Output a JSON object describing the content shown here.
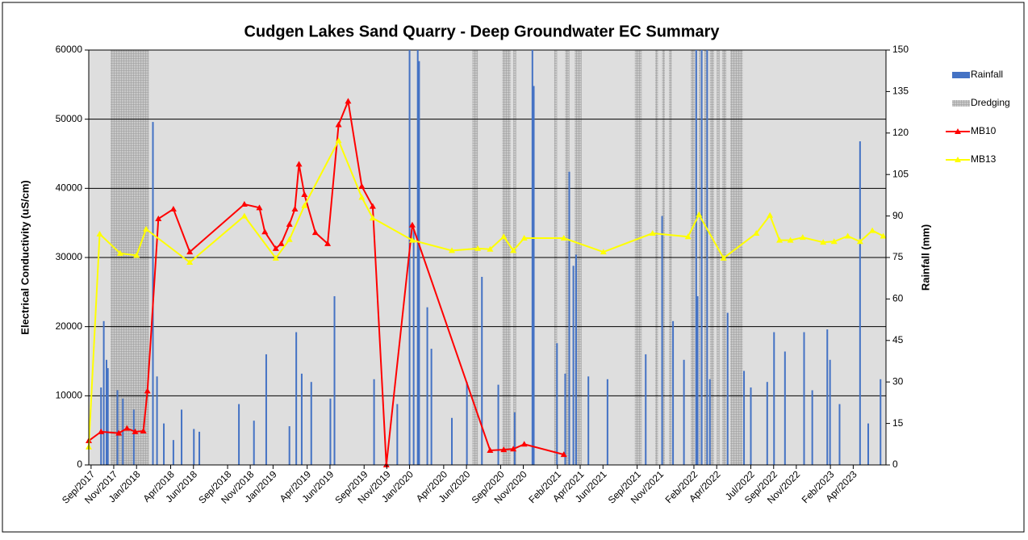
{
  "chart_data": {
    "type": "combo",
    "title": "Cudgen Lakes Sand Quarry - Deep Groundwater EC Summary",
    "y_label": "Electrical Conductivity (uS/cm)",
    "y2_label": "Rainfall (mm)",
    "xlim": [
      2017.65,
      2023.49
    ],
    "xticks": [
      {
        "value": 2017.667,
        "label": "Sep/2017"
      },
      {
        "value": 2017.833,
        "label": "Nov/2017"
      },
      {
        "value": 2018.0,
        "label": "Jan/2018"
      },
      {
        "value": 2018.25,
        "label": "Apr/2018"
      },
      {
        "value": 2018.417,
        "label": "Jun/2018"
      },
      {
        "value": 2018.667,
        "label": "Sep/2018"
      },
      {
        "value": 2018.833,
        "label": "Nov/2018"
      },
      {
        "value": 2019.0,
        "label": "Jan/2019"
      },
      {
        "value": 2019.25,
        "label": "Apr/2019"
      },
      {
        "value": 2019.417,
        "label": "Jun/2019"
      },
      {
        "value": 2019.667,
        "label": "Sep/2019"
      },
      {
        "value": 2019.833,
        "label": "Nov/2019"
      },
      {
        "value": 2020.0,
        "label": "Jan/2020"
      },
      {
        "value": 2020.25,
        "label": "Apr/2020"
      },
      {
        "value": 2020.417,
        "label": "Jun/2020"
      },
      {
        "value": 2020.667,
        "label": "Sep/2020"
      },
      {
        "value": 2020.833,
        "label": "Nov/2020"
      },
      {
        "value": 2021.083,
        "label": "Feb/2021"
      },
      {
        "value": 2021.25,
        "label": "Apr/2021"
      },
      {
        "value": 2021.417,
        "label": "Jun/2021"
      },
      {
        "value": 2021.667,
        "label": "Sep/2021"
      },
      {
        "value": 2021.833,
        "label": "Nov/2021"
      },
      {
        "value": 2022.083,
        "label": "Feb/2022"
      },
      {
        "value": 2022.25,
        "label": "Apr/2022"
      },
      {
        "value": 2022.5,
        "label": "Jul/2022"
      },
      {
        "value": 2022.667,
        "label": "Sep/2022"
      },
      {
        "value": 2022.833,
        "label": "Nov/2022"
      },
      {
        "value": 2023.083,
        "label": "Feb/2023"
      },
      {
        "value": 2023.25,
        "label": "Apr/2023"
      }
    ],
    "ylim": [
      0,
      60000
    ],
    "yticks": [
      0,
      10000,
      20000,
      30000,
      40000,
      50000,
      60000
    ],
    "y2lim": [
      0,
      150
    ],
    "y2ticks": [
      0,
      15,
      30,
      45,
      60,
      75,
      90,
      105,
      120,
      135,
      150
    ],
    "grid": true,
    "legend": "right",
    "series": [
      {
        "name": "Rainfall",
        "type": "bar",
        "axis": "y2",
        "color": "#4472c4",
        "x": [
          2017.74,
          2017.76,
          2017.78,
          2017.79,
          2017.86,
          2017.9,
          2017.98,
          2018.12,
          2018.15,
          2018.2,
          2018.27,
          2018.33,
          2018.42,
          2018.46,
          2018.75,
          2018.86,
          2018.95,
          2019.12,
          2019.17,
          2019.21,
          2019.28,
          2019.42,
          2019.45,
          2019.74,
          2019.91,
          2020.0,
          2020.03,
          2020.06,
          2020.07,
          2020.13,
          2020.16,
          2020.31,
          2020.42,
          2020.53,
          2020.65,
          2020.77,
          2020.9,
          2020.91,
          2021.08,
          2021.14,
          2021.17,
          2021.2,
          2021.22,
          2021.31,
          2021.45,
          2021.73,
          2021.85,
          2021.93,
          2022.01,
          2022.1,
          2022.11,
          2022.14,
          2022.18,
          2022.2,
          2022.33,
          2022.45,
          2022.5,
          2022.62,
          2022.67,
          2022.75,
          2022.89,
          2022.95,
          2023.06,
          2023.08,
          2023.15,
          2023.3,
          2023.36,
          2023.45
        ],
        "values": [
          28,
          52,
          38,
          35,
          27,
          24,
          20,
          124,
          32,
          15,
          9,
          20,
          13,
          12,
          22,
          16,
          40,
          14,
          48,
          33,
          30,
          24,
          61,
          31,
          22,
          150,
          85,
          150,
          146,
          57,
          42,
          17,
          30,
          68,
          29,
          19,
          150,
          137,
          44,
          33,
          106,
          72,
          76,
          32,
          31,
          40,
          90,
          52,
          38,
          150,
          61,
          150,
          150,
          31,
          55,
          34,
          28,
          30,
          48,
          41,
          48,
          27,
          49,
          38,
          22,
          117,
          15,
          31
        ]
      },
      {
        "name": "Dredging",
        "type": "span",
        "color": "#9a9a9a",
        "periods": [
          [
            2017.81,
            2018.09
          ],
          [
            2020.46,
            2020.5
          ],
          [
            2020.68,
            2020.74
          ],
          [
            2020.76,
            2020.78
          ],
          [
            2021.06,
            2021.08
          ],
          [
            2021.14,
            2021.17
          ],
          [
            2021.21,
            2021.26
          ],
          [
            2021.65,
            2021.7
          ],
          [
            2021.8,
            2021.82
          ],
          [
            2021.85,
            2021.87
          ],
          [
            2021.9,
            2021.92
          ],
          [
            2022.06,
            2022.09
          ],
          [
            2022.12,
            2022.13
          ],
          [
            2022.16,
            2022.18
          ],
          [
            2022.2,
            2022.23
          ],
          [
            2022.25,
            2022.27
          ],
          [
            2022.29,
            2022.32
          ],
          [
            2022.35,
            2022.44
          ]
        ]
      },
      {
        "name": "MB10",
        "type": "line",
        "color": "#ff0000",
        "x": [
          2017.65,
          2017.74,
          2017.87,
          2017.93,
          2017.99,
          2018.05,
          2018.08,
          2018.16,
          2018.27,
          2018.39,
          2018.79,
          2018.9,
          2018.94,
          2019.02,
          2019.06,
          2019.12,
          2019.16,
          2019.19,
          2019.23,
          2019.31,
          2019.4,
          2019.48,
          2019.55,
          2019.65,
          2019.73,
          2019.83,
          2020.02,
          2020.59,
          2020.69,
          2020.76,
          2020.84,
          2021.13
        ],
        "values": [
          3500,
          4800,
          4600,
          5300,
          4800,
          4900,
          10700,
          35600,
          37000,
          30800,
          37700,
          37200,
          33700,
          31300,
          32000,
          34800,
          37000,
          43500,
          39100,
          33600,
          32000,
          49200,
          52600,
          40300,
          37400,
          0,
          34700,
          2100,
          2200,
          2300,
          3000,
          1500
        ]
      },
      {
        "name": "MB13",
        "type": "line",
        "color": "#ffff00",
        "x": [
          2017.65,
          2017.73,
          2017.88,
          2018.0,
          2018.07,
          2018.39,
          2018.79,
          2019.02,
          2019.12,
          2019.23,
          2019.48,
          2019.65,
          2019.73,
          2020.02,
          2020.31,
          2020.5,
          2020.59,
          2020.69,
          2020.76,
          2020.84,
          2021.13,
          2021.42,
          2021.78,
          2022.04,
          2022.12,
          2022.3,
          2022.54,
          2022.64,
          2022.71,
          2022.79,
          2022.88,
          2023.03,
          2023.11,
          2023.21,
          2023.3,
          2023.39,
          2023.47
        ],
        "values": [
          2600,
          33400,
          30600,
          30300,
          34100,
          29300,
          36000,
          29900,
          32600,
          37500,
          46900,
          38700,
          35700,
          32500,
          31000,
          31300,
          31200,
          33000,
          31000,
          32800,
          32800,
          30800,
          33500,
          33000,
          36200,
          29900,
          33500,
          36100,
          32500,
          32500,
          32900,
          32200,
          32300,
          33100,
          32300,
          33900,
          33100
        ]
      }
    ]
  }
}
